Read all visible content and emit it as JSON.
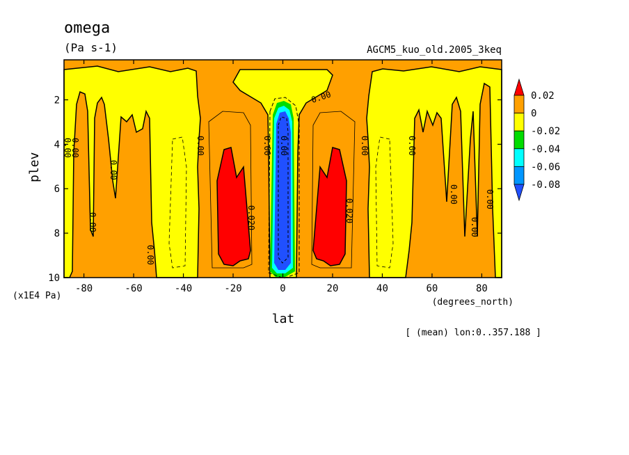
{
  "chart_data": {
    "type": "contour",
    "title": "omega",
    "units": "(Pa s-1)",
    "experiment": "AGCM5_kuo_old.2005_3keq",
    "xlabel": "lat",
    "x_unit": "(degrees_north)",
    "ylabel": "plev",
    "y_unit": "(x1E4 Pa)",
    "averaging_note": "[ (mean) lon:0..357.188 ]",
    "xlim": [
      -88,
      88
    ],
    "ylim": [
      10,
      0.2
    ],
    "x_ticks": [
      -80,
      -60,
      -40,
      -20,
      0,
      20,
      40,
      60,
      80
    ],
    "y_ticks": [
      2,
      4,
      6,
      8,
      10
    ],
    "x_tick_labels": [
      "-80",
      "-60",
      "-40",
      "-20",
      "0",
      "20",
      "40",
      "60",
      "80"
    ],
    "y_tick_labels": [
      "2",
      "4",
      "6",
      "8",
      "10"
    ],
    "colorbar": {
      "labels": [
        "0.02",
        "0",
        "-0.02",
        "-0.04",
        "-0.06",
        "-0.08"
      ],
      "colors": [
        "#ff0000",
        "#ffa000",
        "#ffff00",
        "#00dc00",
        "#00ffff",
        "#0096ff",
        "#2050ff"
      ]
    },
    "contour_labels": [
      "0.00",
      "0.020",
      "0.020",
      "0.00",
      "0.00",
      "0.00",
      "0.00",
      "0.00",
      "0.00",
      "0.00",
      "0.00",
      "0.00",
      "0.00",
      "0.00",
      "0.00",
      "0.00"
    ]
  }
}
